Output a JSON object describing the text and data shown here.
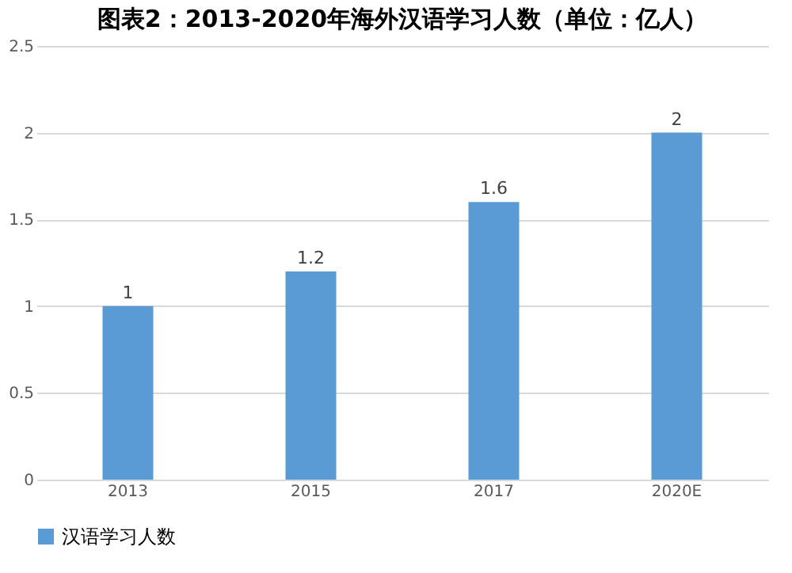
{
  "chart_data": {
    "type": "bar",
    "title": "图表2：2013-2020年海外汉语学习人数（单位：亿人）",
    "categories": [
      "2013",
      "2015",
      "2017",
      "2020E"
    ],
    "series": [
      {
        "name": "汉语学习人数",
        "color": "#5b9bd5",
        "values": [
          1,
          1.2,
          1.6,
          2
        ]
      }
    ],
    "ylim": [
      0,
      2.5
    ],
    "yticks": [
      0,
      0.5,
      1,
      1.5,
      2,
      2.5
    ],
    "grid": "y",
    "legend": "bottom",
    "data_labels": true
  }
}
